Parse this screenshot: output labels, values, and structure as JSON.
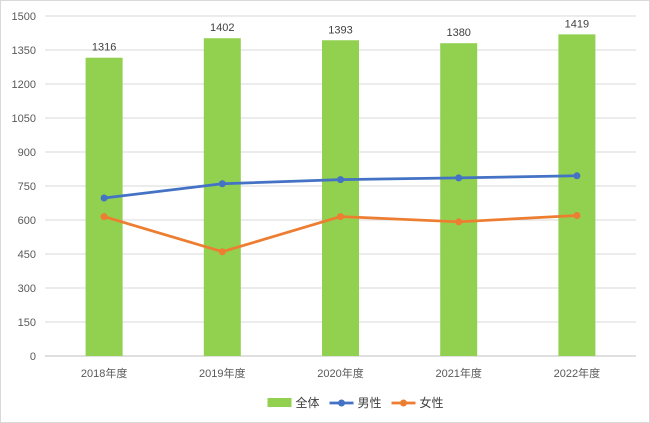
{
  "chart_data": {
    "type": "bar",
    "categories": [
      "2018年度",
      "2019年度",
      "2020年度",
      "2021年度",
      "2022年度"
    ],
    "series": [
      {
        "name": "全体",
        "type": "bar",
        "color": "#92d050",
        "values": [
          1316,
          1402,
          1393,
          1380,
          1419
        ],
        "data_labels": true
      },
      {
        "name": "男性",
        "type": "line",
        "color": "#4472c4",
        "values": [
          697,
          760,
          778,
          786,
          795
        ],
        "data_labels": false
      },
      {
        "name": "女性",
        "type": "line",
        "color": "#ed7d31",
        "values": [
          615,
          460,
          615,
          592,
          620
        ],
        "data_labels": false
      }
    ],
    "y_ticks": [
      "0",
      "150",
      "300",
      "450",
      "600",
      "750",
      "900",
      "1050",
      "1200",
      "1350",
      "1500"
    ],
    "ylim": [
      0,
      1500
    ],
    "y_step": 150,
    "grid": true,
    "legend_position": "bottom"
  }
}
